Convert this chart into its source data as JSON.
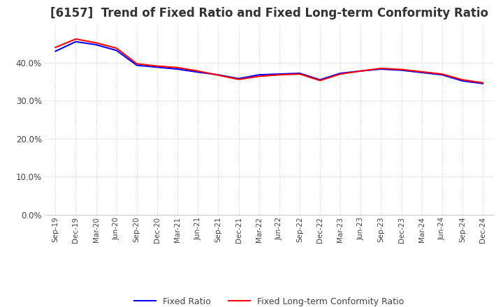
{
  "title": "[6157]  Trend of Fixed Ratio and Fixed Long-term Conformity Ratio",
  "title_fontsize": 12,
  "x_labels": [
    "Sep-19",
    "Dec-19",
    "Mar-20",
    "Jun-20",
    "Sep-20",
    "Dec-20",
    "Mar-21",
    "Jun-21",
    "Sep-21",
    "Dec-21",
    "Mar-22",
    "Jun-22",
    "Sep-22",
    "Dec-22",
    "Mar-23",
    "Jun-23",
    "Sep-23",
    "Dec-23",
    "Mar-24",
    "Jun-24",
    "Sep-24",
    "Dec-24"
  ],
  "fixed_ratio": [
    0.43,
    0.455,
    0.447,
    0.432,
    0.393,
    0.388,
    0.383,
    0.375,
    0.368,
    0.358,
    0.368,
    0.37,
    0.372,
    0.355,
    0.372,
    0.378,
    0.383,
    0.38,
    0.374,
    0.368,
    0.352,
    0.345
  ],
  "fixed_lt_ratio": [
    0.44,
    0.462,
    0.452,
    0.438,
    0.397,
    0.391,
    0.387,
    0.378,
    0.367,
    0.356,
    0.364,
    0.368,
    0.37,
    0.353,
    0.37,
    0.378,
    0.385,
    0.382,
    0.376,
    0.37,
    0.355,
    0.347
  ],
  "fixed_ratio_color": "#0000ff",
  "fixed_lt_ratio_color": "#ff0000",
  "ylim": [
    0.0,
    0.5
  ],
  "yticks": [
    0.0,
    0.1,
    0.2,
    0.3,
    0.4
  ],
  "grid_color": "#cccccc",
  "background_color": "#ffffff",
  "legend_fixed_ratio": "Fixed Ratio",
  "legend_fixed_lt_ratio": "Fixed Long-term Conformity Ratio"
}
